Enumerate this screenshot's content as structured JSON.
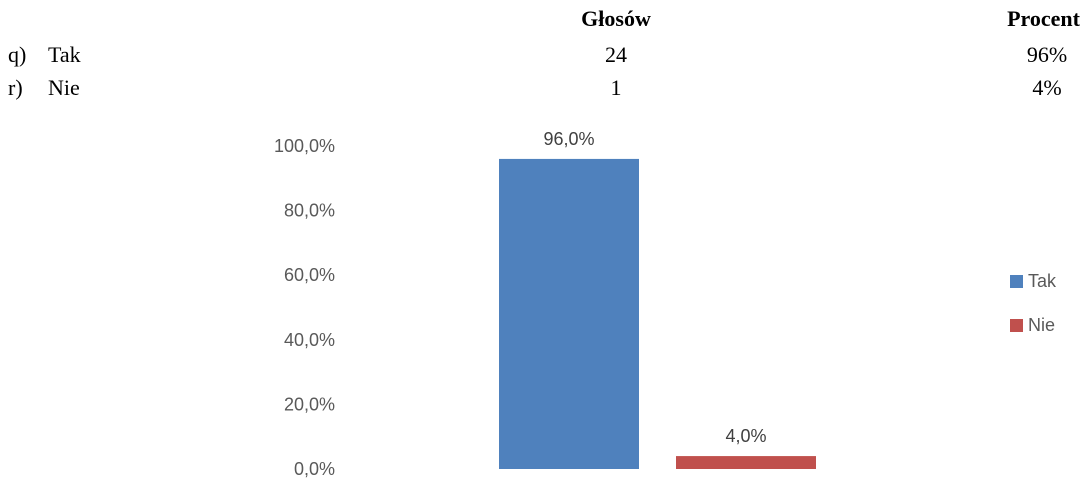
{
  "table": {
    "header": {
      "votes": "Głosów",
      "percent": "Procent"
    },
    "rows": [
      {
        "letter": "q)",
        "label": "Tak",
        "votes": "24",
        "percent": "96%"
      },
      {
        "letter": "r)",
        "label": "Nie",
        "votes": "1",
        "percent": "4%"
      }
    ]
  },
  "chart_data": {
    "type": "bar",
    "categories": [
      ""
    ],
    "series": [
      {
        "name": "Tak",
        "values": [
          96.0
        ],
        "label": "96,0%",
        "color": "#4f81bd"
      },
      {
        "name": "Nie",
        "values": [
          4.0
        ],
        "label": "4,0%",
        "color": "#c0504d"
      }
    ],
    "ylim": [
      0,
      100
    ],
    "yticks": [
      {
        "value": 0,
        "label": "0,0%"
      },
      {
        "value": 20,
        "label": "20,0%"
      },
      {
        "value": 40,
        "label": "40,0%"
      },
      {
        "value": 60,
        "label": "60,0%"
      },
      {
        "value": 80,
        "label": "80,0%"
      },
      {
        "value": 100,
        "label": "100,0%"
      }
    ],
    "grid": false,
    "legend": "right"
  }
}
